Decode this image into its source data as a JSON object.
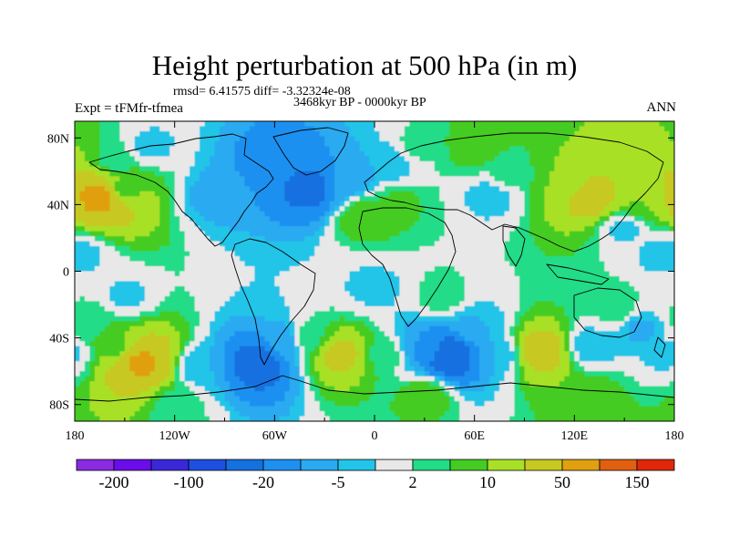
{
  "header": {
    "title": "Height perturbation at 500 hPa (in m)",
    "stats": "rmsd= 6.41575 diff= -3.32324e-08",
    "period": "3468kyr BP - 0000kyr BP",
    "experiment": "Expt = tFMfr-tfmea",
    "season": "ANN"
  },
  "chart_data": {
    "type": "heatmap",
    "title": "Height perturbation at 500 hPa (in m)",
    "xlabel": "",
    "ylabel": "",
    "xlim": [
      -180,
      180
    ],
    "ylim": [
      -90,
      90
    ],
    "x_ticks": [
      {
        "value": -180,
        "label": "180"
      },
      {
        "value": -120,
        "label": "120W"
      },
      {
        "value": -60,
        "label": "60W"
      },
      {
        "value": 0,
        "label": "0"
      },
      {
        "value": 60,
        "label": "60E"
      },
      {
        "value": 120,
        "label": "120E"
      },
      {
        "value": 180,
        "label": "180"
      }
    ],
    "y_ticks": [
      {
        "value": 80,
        "label": "80N"
      },
      {
        "value": 40,
        "label": "40N"
      },
      {
        "value": 0,
        "label": "0"
      },
      {
        "value": -40,
        "label": "40S"
      },
      {
        "value": -80,
        "label": "80S"
      }
    ],
    "colorbar": {
      "colors": [
        "#8A2BE2",
        "#6A0DEA",
        "#3A28D8",
        "#1E4FE0",
        "#1570E0",
        "#1E90F0",
        "#2AAAF0",
        "#22C4E8",
        "#E8E8E8",
        "#22DC88",
        "#44CC22",
        "#A8E028",
        "#C8C822",
        "#E0A010",
        "#E06010",
        "#E02808"
      ],
      "labels": [
        "-200",
        "-100",
        "-20",
        "-5",
        "2",
        "10",
        "50",
        "150"
      ]
    },
    "field": [
      {
        "lon": -155,
        "lat": 66,
        "value": 3
      },
      {
        "lon": -165,
        "lat": 44,
        "value": 60
      },
      {
        "lon": -150,
        "lat": 50,
        "value": 8
      },
      {
        "lon": -135,
        "lat": 75,
        "value": -3
      },
      {
        "lon": -95,
        "lat": 45,
        "value": -7
      },
      {
        "lon": -60,
        "lat": 65,
        "value": -15
      },
      {
        "lon": -40,
        "lat": 50,
        "value": -25
      },
      {
        "lon": -15,
        "lat": 55,
        "value": -8
      },
      {
        "lon": 10,
        "lat": 65,
        "value": -5
      },
      {
        "lon": 15,
        "lat": 40,
        "value": 6
      },
      {
        "lon": -5,
        "lat": 33,
        "value": 10
      },
      {
        "lon": 25,
        "lat": 75,
        "value": 3
      },
      {
        "lon": 60,
        "lat": 75,
        "value": 8
      },
      {
        "lon": 80,
        "lat": 58,
        "value": 3
      },
      {
        "lon": 70,
        "lat": 45,
        "value": -4
      },
      {
        "lon": 115,
        "lat": 55,
        "value": 10
      },
      {
        "lon": 130,
        "lat": 45,
        "value": 30
      },
      {
        "lon": 160,
        "lat": 42,
        "value": 10
      },
      {
        "lon": 150,
        "lat": 25,
        "value": -3
      },
      {
        "lon": 170,
        "lat": 10,
        "value": -3
      },
      {
        "lon": -175,
        "lat": 10,
        "value": -3
      },
      {
        "lon": -150,
        "lat": -15,
        "value": -3
      },
      {
        "lon": -60,
        "lat": -12,
        "value": -2
      },
      {
        "lon": 0,
        "lat": -10,
        "value": -3
      },
      {
        "lon": 40,
        "lat": -15,
        "value": 4
      },
      {
        "lon": 145,
        "lat": -22,
        "value": 4
      },
      {
        "lon": -170,
        "lat": -30,
        "value": 4
      },
      {
        "lon": -140,
        "lat": -55,
        "value": 55
      },
      {
        "lon": -155,
        "lat": -45,
        "value": 8
      },
      {
        "lon": -105,
        "lat": -58,
        "value": -5
      },
      {
        "lon": -70,
        "lat": -55,
        "value": -30
      },
      {
        "lon": -55,
        "lat": -42,
        "value": -8
      },
      {
        "lon": -40,
        "lat": -40,
        "value": 4
      },
      {
        "lon": -20,
        "lat": -50,
        "value": 25
      },
      {
        "lon": 5,
        "lat": -50,
        "value": 4
      },
      {
        "lon": 30,
        "lat": -45,
        "value": -10
      },
      {
        "lon": 45,
        "lat": -50,
        "value": -35
      },
      {
        "lon": 60,
        "lat": -35,
        "value": -5
      },
      {
        "lon": 75,
        "lat": -50,
        "value": -5
      },
      {
        "lon": 100,
        "lat": -48,
        "value": 30
      },
      {
        "lon": 130,
        "lat": -45,
        "value": -5
      },
      {
        "lon": 160,
        "lat": -35,
        "value": -6
      },
      {
        "lon": 175,
        "lat": -50,
        "value": -3
      },
      {
        "lon": 30,
        "lat": -75,
        "value": 8
      },
      {
        "lon": -120,
        "lat": -80,
        "value": 3
      },
      {
        "lon": 130,
        "lat": -75,
        "value": 8
      }
    ]
  }
}
